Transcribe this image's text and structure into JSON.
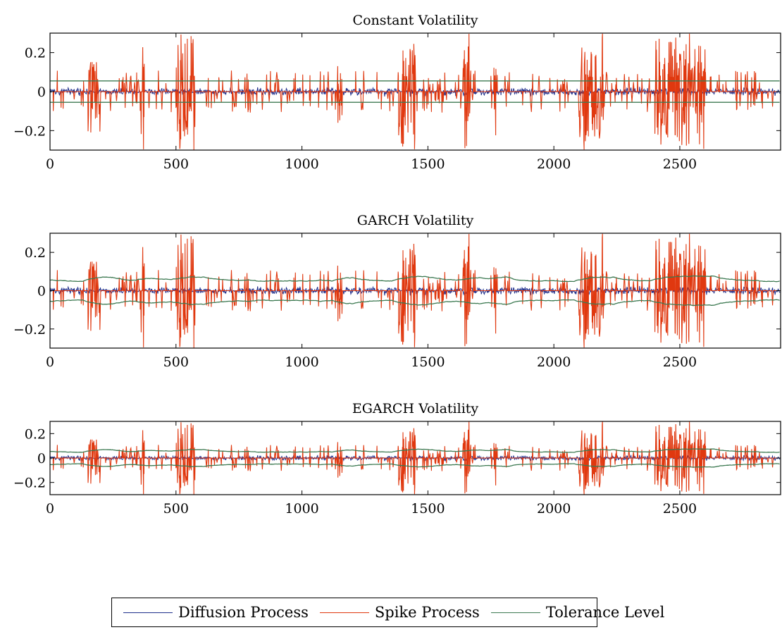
{
  "chart_data": [
    {
      "type": "line",
      "title": "Constant Volatility",
      "xlim": [
        0,
        2900
      ],
      "ylim": [
        -0.3,
        0.3
      ],
      "xticks": [
        0,
        500,
        1000,
        1500,
        2000,
        2500
      ],
      "yticks": [
        -0.2,
        0,
        0.2
      ],
      "ytick_labels": [
        "−0.2",
        "0",
        "0.2"
      ],
      "tolerance": "constant",
      "tolerance_level": 0.055
    },
    {
      "type": "line",
      "title": "GARCH Volatility",
      "xlim": [
        0,
        2900
      ],
      "ylim": [
        -0.3,
        0.3
      ],
      "xticks": [
        0,
        500,
        1000,
        1500,
        2000,
        2500
      ],
      "yticks": [
        -0.2,
        0,
        0.2
      ],
      "ytick_labels": [
        "−0.2",
        "0",
        "0.2"
      ],
      "tolerance": "time-varying",
      "tolerance_level": 0.055
    },
    {
      "type": "line",
      "title": "EGARCH Volatility",
      "xlim": [
        0,
        2900
      ],
      "ylim": [
        -0.3,
        0.3
      ],
      "xticks": [
        0,
        500,
        1000,
        1500,
        2000,
        2500
      ],
      "yticks": [
        -0.2,
        0,
        0.2
      ],
      "ytick_labels": [
        "−0.2",
        "0",
        "0.2"
      ],
      "tolerance": "time-varying",
      "tolerance_level": 0.055
    }
  ],
  "series": [
    {
      "name": "Diffusion Process",
      "color": "#1f2f8c"
    },
    {
      "name": "Spike Process",
      "color": "#e0380f"
    },
    {
      "name": "Tolerance Level",
      "color": "#3d7a52"
    }
  ],
  "spike_clusters": [
    {
      "x": [
        150,
        200
      ],
      "peak": 0.21
    },
    {
      "x": [
        360,
        375
      ],
      "peak": 0.3
    },
    {
      "x": [
        500,
        575
      ],
      "peak": 0.3
    },
    {
      "x": [
        1140,
        1160
      ],
      "peak": 0.16
    },
    {
      "x": [
        1380,
        1450
      ],
      "peak": 0.3
    },
    {
      "x": [
        1640,
        1670
      ],
      "peak": 0.3
    },
    {
      "x": [
        1760,
        1770
      ],
      "peak": 0.3
    },
    {
      "x": [
        2100,
        2200
      ],
      "peak": 0.3
    },
    {
      "x": [
        2400,
        2600
      ],
      "peak": 0.3
    }
  ]
}
